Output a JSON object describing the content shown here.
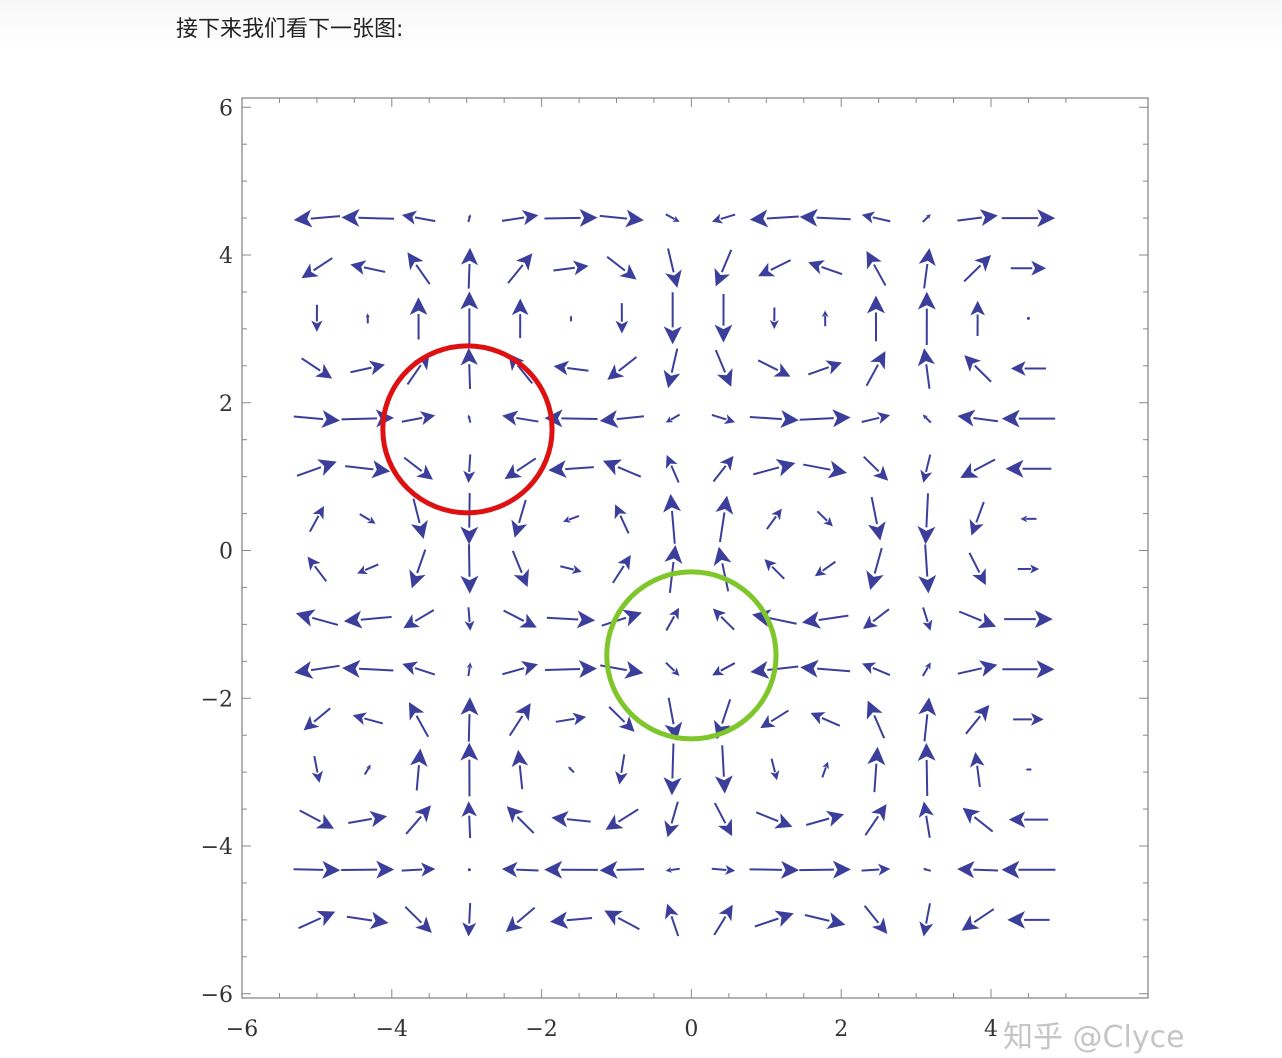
{
  "intro_text": "接下来我们看下一张图:",
  "watermark": "知乎 @Clyce",
  "colors": {
    "arrow": "#3b3f9b",
    "frame": "#888888",
    "red_circle": "#dd1111",
    "green_circle": "#7ec62a"
  },
  "chart_data": {
    "type": "vector-field",
    "title": "",
    "xlabel": "",
    "ylabel": "",
    "xlim": [
      -6,
      5.4
    ],
    "ylim": [
      -6.3,
      6.1
    ],
    "xticks": [
      -6,
      -4,
      -2,
      0,
      2,
      4
    ],
    "yticks": [
      -6,
      -4,
      -2,
      0,
      2,
      4,
      6
    ],
    "xtick_labels": [
      "−6",
      "−4",
      "−2",
      "0",
      "2",
      "4"
    ],
    "ytick_labels": [
      "−6",
      "−4",
      "−2",
      "0",
      "2",
      "4",
      "6"
    ],
    "grid": false,
    "field": {
      "x_range": [
        -5,
        4.5
      ],
      "y_range": [
        -5,
        4.5
      ],
      "samples": 15,
      "description": "vector field with points where arrows converge and diverge"
    },
    "annotations": [
      {
        "type": "circle",
        "color": "red",
        "cx": -2.99,
        "cy": 1.64,
        "r": 1.13
      },
      {
        "type": "circle",
        "color": "green",
        "cx": 0,
        "cy": -1.42,
        "r": 1.13
      }
    ]
  }
}
